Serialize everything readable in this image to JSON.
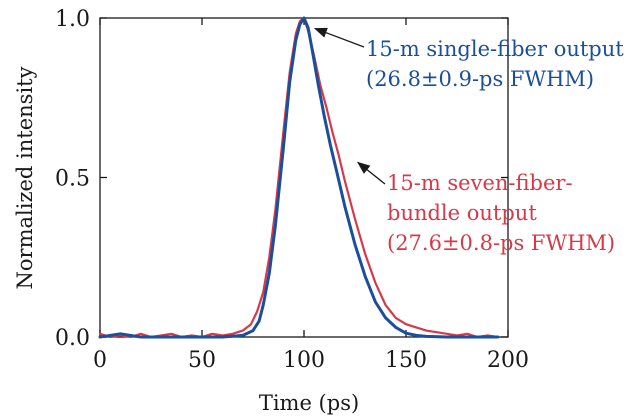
{
  "chart_data": {
    "type": "line",
    "title": "",
    "xlabel": "Time (ps)",
    "ylabel": "Normalized intensity",
    "xlim": [
      0,
      200
    ],
    "ylim": [
      0,
      1
    ],
    "x_ticks": [
      0,
      50,
      100,
      150,
      200
    ],
    "y_ticks": [
      0,
      0.5,
      1
    ],
    "x_tick_labels": [
      "0",
      "50",
      "100",
      "150",
      "200"
    ],
    "y_tick_labels": [
      "0.0",
      "0.5",
      "1.0"
    ],
    "grid": false,
    "legend": "none",
    "series": [
      {
        "color": "#1b4f9c",
        "x": [
          0,
          10,
          20,
          30,
          40,
          50,
          60,
          70,
          75,
          78,
          80,
          83,
          86,
          90,
          93,
          96,
          98,
          100,
          102,
          104,
          107,
          110,
          113,
          116,
          120,
          125,
          130,
          135,
          140,
          145,
          150,
          155,
          160,
          170,
          180,
          195
        ],
        "y": [
          0.0,
          0.01,
          0.0,
          0.0,
          0.0,
          0.0,
          0.0,
          0.005,
          0.02,
          0.05,
          0.1,
          0.2,
          0.35,
          0.6,
          0.8,
          0.93,
          0.98,
          1.0,
          0.97,
          0.9,
          0.79,
          0.69,
          0.6,
          0.52,
          0.41,
          0.29,
          0.19,
          0.11,
          0.06,
          0.03,
          0.012,
          0.005,
          0.002,
          0.0,
          0.0,
          0.0
        ]
      },
      {
        "color": "#d63a48",
        "x": [
          0,
          5,
          10,
          15,
          20,
          25,
          30,
          35,
          40,
          45,
          50,
          55,
          60,
          65,
          70,
          74,
          77,
          80,
          83,
          86,
          90,
          93,
          96,
          98,
          100,
          102,
          105,
          108,
          111,
          114,
          117,
          120,
          125,
          130,
          135,
          140,
          145,
          150,
          155,
          160,
          165,
          170,
          175,
          180,
          185,
          190,
          195
        ],
        "y": [
          0.01,
          0.0,
          0.005,
          0.0,
          0.01,
          0.0,
          0.005,
          0.01,
          0.0,
          0.005,
          0.0,
          0.01,
          0.005,
          0.01,
          0.02,
          0.04,
          0.08,
          0.14,
          0.25,
          0.4,
          0.65,
          0.83,
          0.95,
          0.99,
          1.0,
          0.96,
          0.88,
          0.79,
          0.72,
          0.64,
          0.57,
          0.49,
          0.37,
          0.26,
          0.17,
          0.1,
          0.06,
          0.04,
          0.03,
          0.02,
          0.015,
          0.01,
          0.005,
          0.01,
          0.0,
          0.005,
          0.0
        ]
      }
    ],
    "annotations": [
      {
        "lines": [
          "15-m single-fiber output",
          "(26.8±0.9-ps FWHM)"
        ],
        "color": "#1b4f9c",
        "arrow_to": [
          104,
          0.97
        ]
      },
      {
        "lines": [
          "15-m seven-fiber-",
          "bundle output",
          "(27.6±0.8-ps FWHM)"
        ],
        "color": "#d63a48",
        "arrow_to": [
          125,
          0.55
        ]
      }
    ]
  }
}
